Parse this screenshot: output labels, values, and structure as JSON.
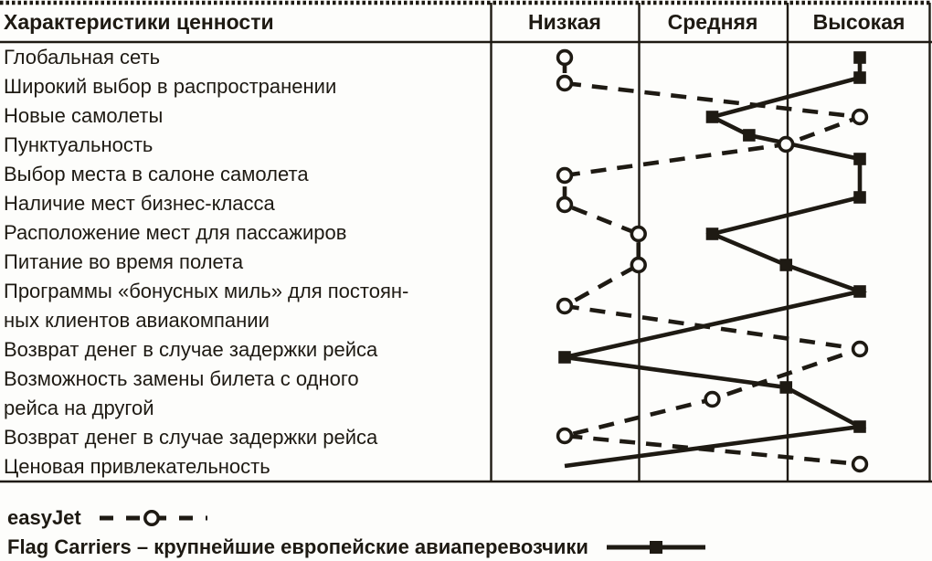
{
  "page": {
    "background": "#fdfdfb",
    "ink": "#1e1a13"
  },
  "table": {
    "header": {
      "characteristics": "Характеристики ценности",
      "columns": [
        "Низкая",
        "Средняя",
        "Высокая"
      ]
    }
  },
  "chart_data": {
    "type": "line",
    "title": "",
    "x_scale": {
      "labels": [
        "Низкая",
        "Средняя",
        "Высокая"
      ],
      "values": [
        1,
        2,
        3
      ],
      "note": "rating scale drawn as three table columns; rows are the value characteristics"
    },
    "grid": "three vertical column separators, dotted top border, solid header and bottom rules",
    "categories": [
      [
        "Глобальная сеть"
      ],
      [
        "Широкий выбор в распространении"
      ],
      [
        "Новые самолеты"
      ],
      [
        "Пунктуальность"
      ],
      [
        "Выбор места в салоне самолета"
      ],
      [
        "Наличие мест бизнес-класса"
      ],
      [
        "Расположение мест для пассажиров"
      ],
      [
        "Питание во время полета"
      ],
      [
        "Программы «бонусных миль» для постоян-",
        "ных клиентов авиакомпании"
      ],
      [
        "Возврат денег в случае задержки рейса"
      ],
      [
        "Возможность замены билета с одного",
        "рейса на другой"
      ],
      [
        "Возврат денег в случае задержки рейса"
      ],
      [
        "Ценовая привлекательность"
      ]
    ],
    "series": [
      {
        "name": "easyJet",
        "line_style": "dashed",
        "marker": "open-circle",
        "values": [
          1,
          1,
          3,
          2.5,
          1,
          1,
          1.5,
          1.5,
          1,
          3,
          2,
          1,
          3
        ]
      },
      {
        "name": "Flag Carriers",
        "line_style": "solid",
        "marker": "filled-square",
        "marker_skip_rows": [
          13
        ],
        "values": [
          3,
          3,
          2,
          2.25,
          3,
          3,
          2,
          2.5,
          3,
          1,
          2.5,
          3,
          1
        ]
      }
    ],
    "legend_position": "below chart, left-aligned"
  },
  "legend": [
    {
      "label": "easyJet",
      "sample": "dashed-line-open-circle"
    },
    {
      "label": "Flag Carriers – крупнейшие европейские авиаперевозчики",
      "sample": "solid-line-filled-square"
    }
  ]
}
